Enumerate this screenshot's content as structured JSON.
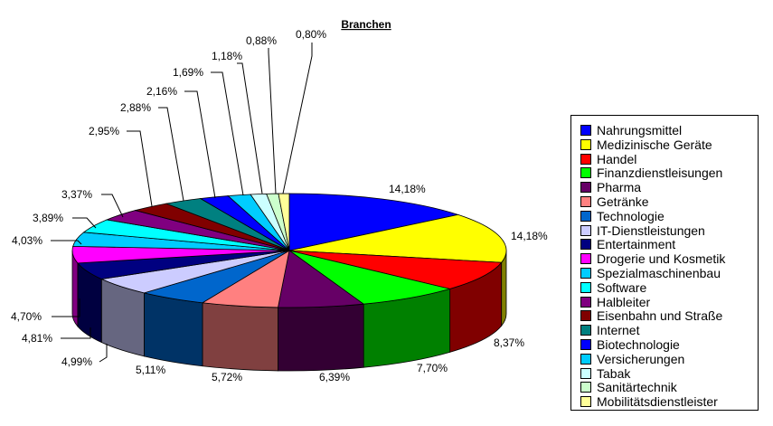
{
  "chart_data": {
    "type": "pie",
    "title": "Branchen",
    "three_d": true,
    "legend_position": "right",
    "slices": [
      {
        "label": "Nahrungsmittel",
        "value": 14.18,
        "display": "14,18%",
        "color": "#0000FF"
      },
      {
        "label": "Medizinische Geräte",
        "value": 14.18,
        "display": "14,18%",
        "color": "#FFFF00"
      },
      {
        "label": "Handel",
        "value": 8.37,
        "display": "8,37%",
        "color": "#FF0000"
      },
      {
        "label": "Finanzdienstleisungen",
        "value": 7.7,
        "display": "7,70%",
        "color": "#00FF00"
      },
      {
        "label": "Pharma",
        "value": 6.39,
        "display": "6,39%",
        "color": "#660066"
      },
      {
        "label": "Getränke",
        "value": 5.72,
        "display": "5,72%",
        "color": "#FF8080"
      },
      {
        "label": "Technologie",
        "value": 5.11,
        "display": "5,11%",
        "color": "#0066CC"
      },
      {
        "label": "IT-Dienstleistungen",
        "value": 4.99,
        "display": "4,99%",
        "color": "#CCCCFF"
      },
      {
        "label": "Entertainment",
        "value": 4.81,
        "display": "4,81%",
        "color": "#000080"
      },
      {
        "label": "Drogerie und Kosmetik",
        "value": 4.7,
        "display": "4,70%",
        "color": "#FF00FF"
      },
      {
        "label": "Spezialmaschinenbau",
        "value": 4.03,
        "display": "4,03%",
        "color": "#00CCFF"
      },
      {
        "label": "Software",
        "value": 3.89,
        "display": "3,89%",
        "color": "#00FFFF"
      },
      {
        "label": "Halbleiter",
        "value": 3.37,
        "display": "3,37%",
        "color": "#800080"
      },
      {
        "label": "Eisenbahn und Straße",
        "value": 2.95,
        "display": "2,95%",
        "color": "#800000"
      },
      {
        "label": "Internet",
        "value": 2.88,
        "display": "2,88%",
        "color": "#008080"
      },
      {
        "label": "Biotechnologie",
        "value": 2.16,
        "display": "2,16%",
        "color": "#0000FF"
      },
      {
        "label": "Versicherungen",
        "value": 1.69,
        "display": "1,69%",
        "color": "#00CCFF"
      },
      {
        "label": "Tabak",
        "value": 1.18,
        "display": "1,18%",
        "color": "#CCFFFF"
      },
      {
        "label": "Sanitärtechnik",
        "value": 0.88,
        "display": "0,88%",
        "color": "#CCFFCC"
      },
      {
        "label": "Mobilitätsdienstleister",
        "value": 0.8,
        "display": "0,80%",
        "color": "#FFFF99"
      }
    ]
  }
}
